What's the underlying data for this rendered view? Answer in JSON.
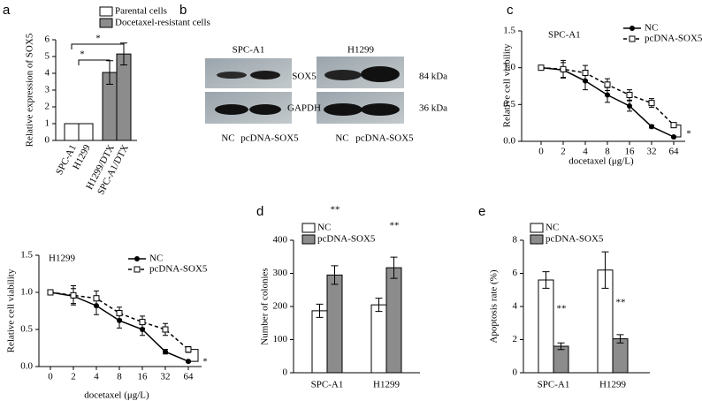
{
  "chart_data": [
    {
      "type": "bar",
      "panel": "a",
      "ylabel": "Relative expression of SOX5",
      "categories": [
        "SPC-A1",
        "H1299",
        "H1299/DTX",
        "SPC-A1/DTX"
      ],
      "series": [
        {
          "name": "Parental cells",
          "color": "#ffffff",
          "values": [
            1,
            1,
            null,
            null
          ],
          "errors": [
            null,
            null,
            null,
            null
          ]
        },
        {
          "name": "Docetaxel-resistant cells",
          "color": "#8c8c8c",
          "values": [
            null,
            null,
            4.05,
            5.15
          ],
          "errors": [
            null,
            null,
            0.7,
            0.65
          ]
        }
      ],
      "ylim": [
        0,
        6
      ],
      "yticks": [
        0,
        1,
        2,
        3,
        4,
        5,
        6
      ],
      "annotations": [
        "*",
        "*"
      ]
    },
    {
      "type": "line",
      "panel": "c",
      "title": "SPC-A1",
      "xlabel": "docetaxel (μg/L)",
      "ylabel": "Relative cell viability",
      "categories": [
        "0",
        "2",
        "4",
        "8",
        "16",
        "32",
        "64"
      ],
      "series": [
        {
          "name": "NC",
          "color": "#000000",
          "marker": "circle",
          "linestyle": "solid",
          "values": [
            1.0,
            0.97,
            0.82,
            0.63,
            0.48,
            0.2,
            0.06
          ],
          "errors": [
            0.02,
            0.1,
            0.12,
            0.1,
            0.07,
            0.02,
            0.01
          ]
        },
        {
          "name": "pcDNA-SOX5",
          "color": "#000000",
          "marker": "square",
          "linestyle": "dashed",
          "values": [
            1.0,
            0.98,
            0.93,
            0.77,
            0.63,
            0.52,
            0.22
          ],
          "errors": [
            0.02,
            0.12,
            0.1,
            0.08,
            0.07,
            0.06,
            0.03
          ]
        }
      ],
      "ylim": [
        0,
        1.5
      ],
      "yticks": [
        {
          "value": 0,
          "label": "0.0"
        },
        0.5,
        {
          "value": 1,
          "label": "1.0"
        },
        1.5
      ],
      "annotations": [
        "*"
      ]
    },
    {
      "type": "line",
      "title": "H1299",
      "xlabel": "docetaxel (μg/L)",
      "ylabel": "Relative cell viability",
      "categories": [
        "0",
        "2",
        "4",
        "8",
        "16",
        "32",
        "64"
      ],
      "series": [
        {
          "name": "NC",
          "color": "#000000",
          "marker": "circle",
          "linestyle": "solid",
          "values": [
            1.0,
            0.95,
            0.82,
            0.62,
            0.5,
            0.2,
            0.07
          ],
          "errors": [
            0.02,
            0.1,
            0.12,
            0.1,
            0.08,
            0.03,
            0.01
          ]
        },
        {
          "name": "pcDNA-SOX5",
          "color": "#000000",
          "marker": "square",
          "linestyle": "dashed",
          "values": [
            1.0,
            0.96,
            0.92,
            0.72,
            0.6,
            0.5,
            0.23
          ],
          "errors": [
            0.02,
            0.13,
            0.1,
            0.08,
            0.08,
            0.08,
            0.04
          ]
        }
      ],
      "ylim": [
        0,
        1.5
      ],
      "yticks": [
        {
          "value": 0,
          "label": "0.0"
        },
        0.5,
        {
          "value": 1,
          "label": "1.0"
        },
        1.5
      ],
      "annotations": [
        "*"
      ]
    },
    {
      "type": "bar",
      "panel": "d",
      "ylabel": "Number of colonies",
      "categories": [
        "SPC-A1",
        "H1299"
      ],
      "series": [
        {
          "name": "NC",
          "color": "#ffffff",
          "values": [
            187,
            205
          ],
          "errors": [
            20,
            20
          ]
        },
        {
          "name": "pcDNA-SOX5",
          "color": "#8c8c8c",
          "values": [
            295,
            317
          ],
          "errors": [
            28,
            32
          ]
        }
      ],
      "ylim": [
        0,
        400
      ],
      "yticks": [
        0,
        100,
        200,
        300,
        400
      ],
      "annotations": [
        "**",
        "**"
      ]
    },
    {
      "type": "bar",
      "panel": "e",
      "ylabel": "Apoptosis rate (%)",
      "categories": [
        "SPC-A1",
        "H1299"
      ],
      "series": [
        {
          "name": "NC",
          "color": "#ffffff",
          "values": [
            5.6,
            6.2
          ],
          "errors": [
            0.5,
            1.1
          ]
        },
        {
          "name": "pcDNA-SOX5",
          "color": "#8c8c8c",
          "values": [
            1.6,
            2.05
          ],
          "errors": [
            0.2,
            0.25
          ]
        }
      ],
      "ylim": [
        0,
        8
      ],
      "yticks": [
        0,
        2,
        4,
        6,
        8
      ],
      "annotations": [
        "**",
        "**"
      ]
    }
  ],
  "blot": {
    "panel": "b",
    "groups": [
      {
        "title": "SPC-A1",
        "lanes": [
          "NC",
          "pcDNA-SOX5"
        ]
      },
      {
        "title": "H1299",
        "lanes": [
          "NC",
          "pcDNA-SOX5"
        ]
      }
    ],
    "rows": [
      {
        "protein": "SOX5",
        "size": "84 kDa"
      },
      {
        "protein": "GAPDH",
        "size": "36 kDa"
      }
    ]
  }
}
